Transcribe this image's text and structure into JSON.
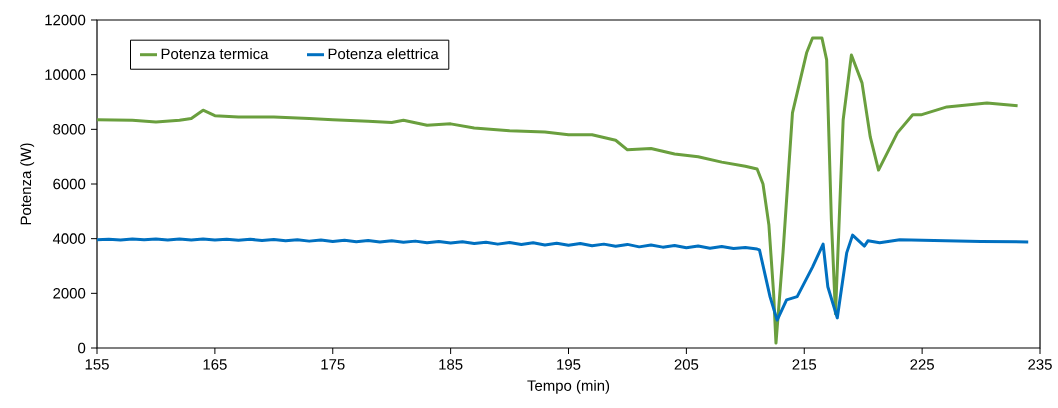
{
  "chart_data": {
    "type": "line",
    "xlabel": "Tempo (min)",
    "ylabel": "Potenza (W)",
    "xlim": [
      155,
      235
    ],
    "ylim": [
      0,
      12000
    ],
    "xticks": [
      155,
      165,
      175,
      185,
      195,
      205,
      215,
      225,
      235
    ],
    "yticks": [
      0,
      2000,
      4000,
      6000,
      8000,
      10000,
      12000
    ],
    "legend": "top left",
    "grid": false,
    "line_style": "solid",
    "series": [
      {
        "name": "Potenza termica",
        "color": "#6a9f3e",
        "x": [
          155,
          158,
          160,
          162,
          163,
          164,
          165,
          167,
          170,
          173,
          175,
          178,
          180,
          181,
          183,
          185,
          187,
          190,
          193,
          195,
          197,
          199,
          200,
          202,
          204,
          206,
          208,
          210,
          211,
          211.5,
          212,
          212.4,
          212.6,
          213.2,
          214.0,
          215.2,
          215.7,
          216.5,
          216.9,
          217.3,
          217.65,
          218.3,
          219.0,
          219.9,
          220.6,
          221.3,
          222.9,
          224.2,
          224.9,
          227.1,
          230.5,
          233.1
        ],
        "values": [
          8350,
          8330,
          8270,
          8330,
          8400,
          8700,
          8500,
          8450,
          8450,
          8400,
          8350,
          8300,
          8250,
          8330,
          8150,
          8200,
          8050,
          7950,
          7900,
          7800,
          7800,
          7600,
          7250,
          7300,
          7100,
          7000,
          6800,
          6650,
          6550,
          6000,
          4500,
          2000,
          180,
          3500,
          8600,
          10800,
          11340,
          11340,
          10540,
          4680,
          1250,
          8340,
          10720,
          9700,
          7720,
          6510,
          7870,
          8530,
          8530,
          8820,
          8960,
          8860
        ]
      },
      {
        "name": "Potenza elettrica",
        "color": "#0070c0",
        "x": [
          155,
          156,
          157,
          158,
          159,
          160,
          161,
          162,
          163,
          164,
          165,
          166,
          167,
          168,
          169,
          170,
          171,
          172,
          173,
          174,
          175,
          176,
          177,
          178,
          179,
          180,
          181,
          182,
          183,
          184,
          185,
          186,
          187,
          188,
          189,
          190,
          191,
          192,
          193,
          194,
          195,
          196,
          197,
          198,
          199,
          200,
          201,
          202,
          203,
          204,
          205,
          206,
          207,
          208,
          209,
          210,
          211,
          211.2,
          212.1,
          212.7,
          213.5,
          214.4,
          215.7,
          216.6,
          217.0,
          217.8,
          218.6,
          219.1,
          220.1,
          220.4,
          221.4,
          223.1,
          226,
          230,
          234
        ],
        "values": [
          3960,
          3980,
          3950,
          3990,
          3960,
          3990,
          3950,
          3990,
          3950,
          3990,
          3950,
          3980,
          3940,
          3980,
          3930,
          3970,
          3920,
          3960,
          3910,
          3950,
          3900,
          3940,
          3890,
          3930,
          3880,
          3920,
          3870,
          3910,
          3850,
          3900,
          3840,
          3890,
          3820,
          3870,
          3800,
          3860,
          3790,
          3850,
          3770,
          3830,
          3760,
          3820,
          3740,
          3800,
          3720,
          3790,
          3700,
          3770,
          3690,
          3750,
          3670,
          3730,
          3650,
          3710,
          3640,
          3680,
          3620,
          3590,
          1870,
          1020,
          1760,
          1880,
          2960,
          3800,
          2240,
          1100,
          3480,
          4130,
          3730,
          3920,
          3850,
          3960,
          3930,
          3900,
          3880
        ]
      }
    ]
  }
}
